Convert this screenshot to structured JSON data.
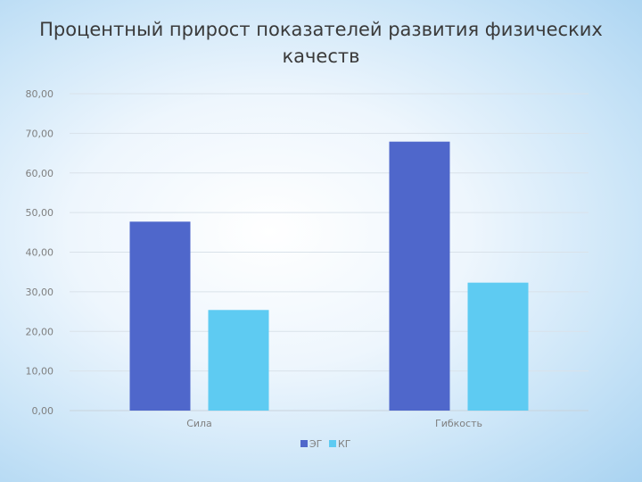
{
  "chart_data": {
    "type": "bar",
    "title": "Процентный прирост показателей развития физических качеств",
    "categories": [
      "Сила",
      "Гибкость"
    ],
    "series": [
      {
        "name": "ЭГ",
        "values": [
          47.7,
          67.9
        ],
        "color": "#4f67cb"
      },
      {
        "name": "КГ",
        "values": [
          25.4,
          32.3
        ],
        "color": "#5ecbf2"
      }
    ],
    "ylim": [
      0,
      80
    ],
    "yticks": [
      "0,00",
      "10,00",
      "20,00",
      "30,00",
      "40,00",
      "50,00",
      "60,00",
      "70,00",
      "80,00"
    ],
    "grid": true,
    "legend": "bottom"
  }
}
